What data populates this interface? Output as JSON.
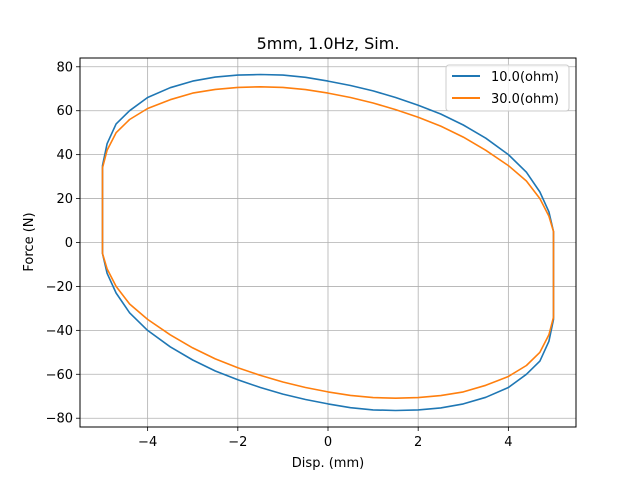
{
  "chart_data": {
    "type": "line",
    "title": "5mm, 1.0Hz, Sim.",
    "xlabel": "Disp. (mm)",
    "ylabel": "Force (N)",
    "xlim": [
      -5.5,
      5.5
    ],
    "ylim": [
      -84,
      84
    ],
    "xticks": [
      -4,
      -2,
      0,
      2,
      4
    ],
    "yticks": [
      -80,
      -60,
      -40,
      -20,
      0,
      20,
      40,
      60,
      80
    ],
    "xtick_labels": [
      "−4",
      "−2",
      "0",
      "2",
      "4"
    ],
    "ytick_labels": [
      "−80",
      "−60",
      "−40",
      "−20",
      "0",
      "20",
      "40",
      "60",
      "80"
    ],
    "grid": true,
    "legend_position": "top-right",
    "series": [
      {
        "name": "10.0(ohm)",
        "color": "#1f77b4",
        "x": [
          -5.0,
          -5.0,
          -4.9,
          -4.7,
          -4.4,
          -4.0,
          -3.5,
          -3.0,
          -2.5,
          -2.0,
          -1.5,
          -1.0,
          -0.5,
          0.0,
          0.5,
          1.0,
          1.5,
          2.0,
          2.5,
          3.0,
          3.5,
          4.0,
          4.4,
          4.7,
          4.9,
          5.0,
          5.0,
          5.0,
          4.9,
          4.7,
          4.4,
          4.0,
          3.5,
          3.0,
          2.5,
          2.0,
          1.5,
          1.0,
          0.5,
          0.0,
          -0.5,
          -1.0,
          -1.5,
          -2.0,
          -2.5,
          -3.0,
          -3.5,
          -4.0,
          -4.4,
          -4.7,
          -4.9,
          -5.0,
          -5.0
        ],
        "y": [
          5,
          35,
          45,
          54,
          60,
          66,
          70.5,
          73.5,
          75.3,
          76.2,
          76.5,
          76.2,
          75.2,
          73.5,
          71.5,
          69,
          66,
          62.5,
          58.5,
          53.5,
          47.5,
          40,
          32,
          23,
          14,
          5,
          -5,
          -35,
          -45,
          -54,
          -60,
          -66,
          -70.5,
          -73.5,
          -75.3,
          -76.2,
          -76.5,
          -76.2,
          -75.2,
          -73.5,
          -71.5,
          -69,
          -66,
          -62.5,
          -58.5,
          -53.5,
          -47.5,
          -40,
          -32,
          -23,
          -14,
          -5,
          5
        ]
      },
      {
        "name": "30.0(ohm)",
        "color": "#ff7f0e",
        "x": [
          -5.0,
          -5.0,
          -4.9,
          -4.7,
          -4.4,
          -4.0,
          -3.5,
          -3.0,
          -2.5,
          -2.0,
          -1.5,
          -1.0,
          -0.5,
          0.0,
          0.5,
          1.0,
          1.5,
          2.0,
          2.5,
          3.0,
          3.5,
          4.0,
          4.4,
          4.7,
          4.9,
          5.0,
          5.0,
          5.0,
          4.9,
          4.7,
          4.4,
          4.0,
          3.5,
          3.0,
          2.5,
          2.0,
          1.5,
          1.0,
          0.5,
          0.0,
          -0.5,
          -1.0,
          -1.5,
          -2.0,
          -2.5,
          -3.0,
          -3.5,
          -4.0,
          -4.4,
          -4.7,
          -4.9,
          -5.0,
          -5.0
        ],
        "y": [
          5,
          34,
          42,
          50,
          56,
          61,
          65,
          68,
          69.7,
          70.6,
          70.9,
          70.6,
          69.6,
          68,
          66,
          63.5,
          60.5,
          57,
          53,
          48,
          42,
          35,
          28,
          20,
          12,
          5,
          -5,
          -34,
          -42,
          -50,
          -56,
          -61,
          -65,
          -68,
          -69.7,
          -70.6,
          -70.9,
          -70.6,
          -69.6,
          -68,
          -66,
          -63.5,
          -60.5,
          -57,
          -53,
          -48,
          -42,
          -35,
          -28,
          -20,
          -12,
          -5,
          5
        ]
      }
    ]
  }
}
